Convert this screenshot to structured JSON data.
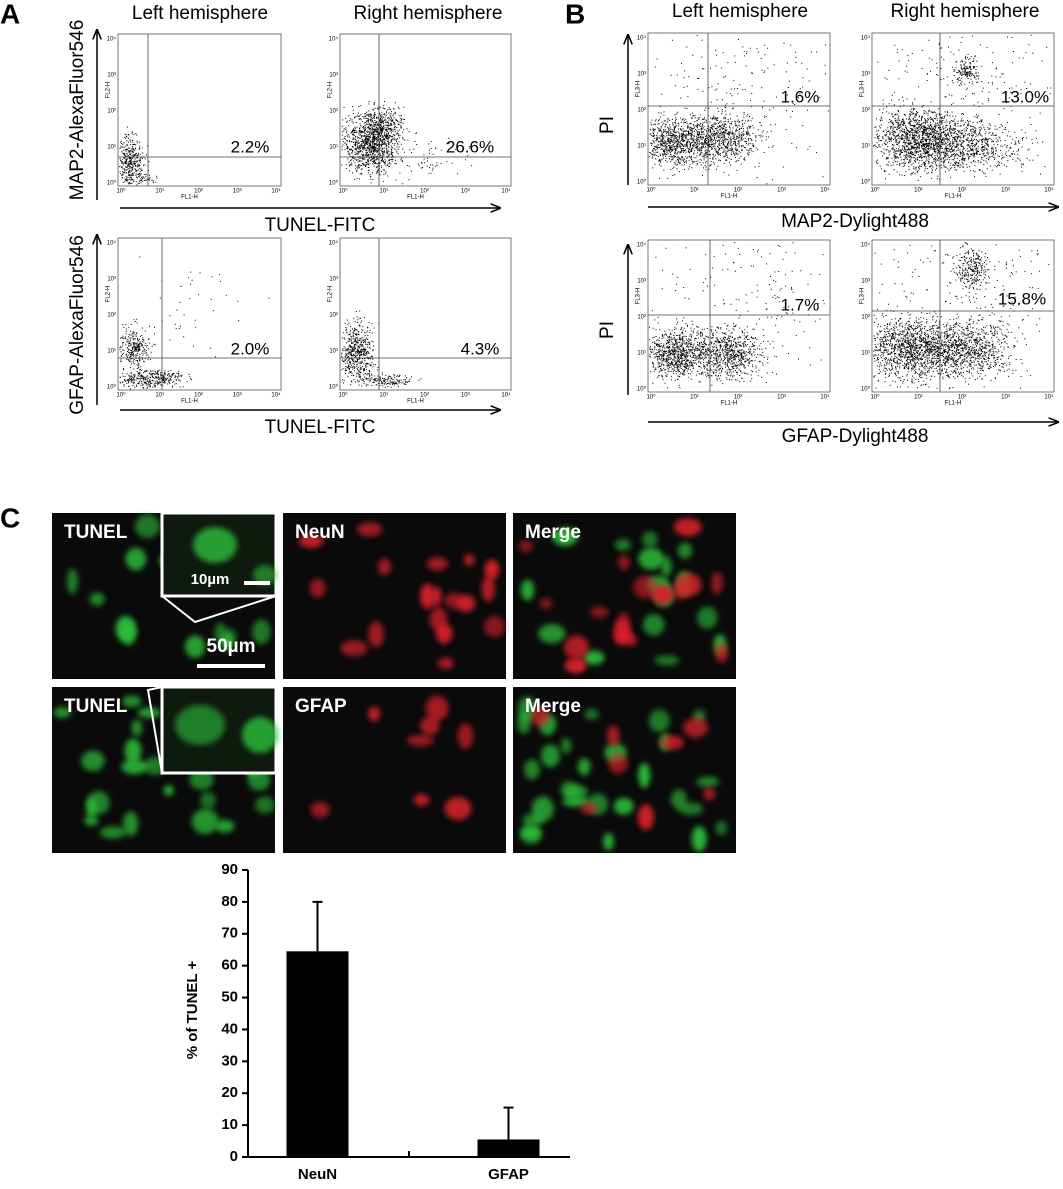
{
  "panel_a": {
    "label": "A",
    "columns": [
      "Left hemisphere",
      "Right hemisphere"
    ],
    "rows": [
      {
        "y_label": "MAP2-AlexaFluor546",
        "x_label": "TUNEL-FITC",
        "percentages": [
          "2.2%",
          "26.6%"
        ]
      },
      {
        "y_label": "GFAP-AlexaFluor546",
        "x_label": "TUNEL-FITC",
        "percentages": [
          "2.0%",
          "4.3%"
        ]
      }
    ],
    "plot_axes": {
      "x": "FL1-H",
      "y": "FL2-H"
    }
  },
  "panel_b": {
    "label": "B",
    "columns": [
      "Left hemisphere",
      "Right hemisphere"
    ],
    "rows": [
      {
        "y_label": "PI",
        "x_label": "MAP2-Dylight488",
        "percentages": [
          "1.6%",
          "13.0%"
        ]
      },
      {
        "y_label": "PI",
        "x_label": "GFAP-Dylight488",
        "percentages": [
          "1.7%",
          "15.8%"
        ]
      }
    ],
    "plot_axes": {
      "x": "FL1-H",
      "y": "FL3-H"
    }
  },
  "decade_ticks": [
    "10⁰",
    "10¹",
    "10²",
    "10³",
    "10⁴"
  ],
  "panel_c": {
    "label": "C",
    "rows": [
      {
        "labels": [
          "TUNEL",
          "NeuN",
          "Merge"
        ]
      },
      {
        "labels": [
          "TUNEL",
          "GFAP",
          "Merge"
        ]
      }
    ],
    "inset_scale": "10µm",
    "scale_bar": "50µm"
  },
  "chart_data": {
    "type": "bar",
    "y_label": "% of TUNEL +",
    "categories": [
      "NeuN",
      "GFAP"
    ],
    "values": [
      64.5,
      5.5
    ],
    "errors": [
      15.5,
      10
    ],
    "color": "#000000",
    "ylim": [
      0,
      90
    ],
    "yticks": [
      0,
      10,
      20,
      30,
      40,
      50,
      60,
      70,
      80,
      90
    ]
  }
}
